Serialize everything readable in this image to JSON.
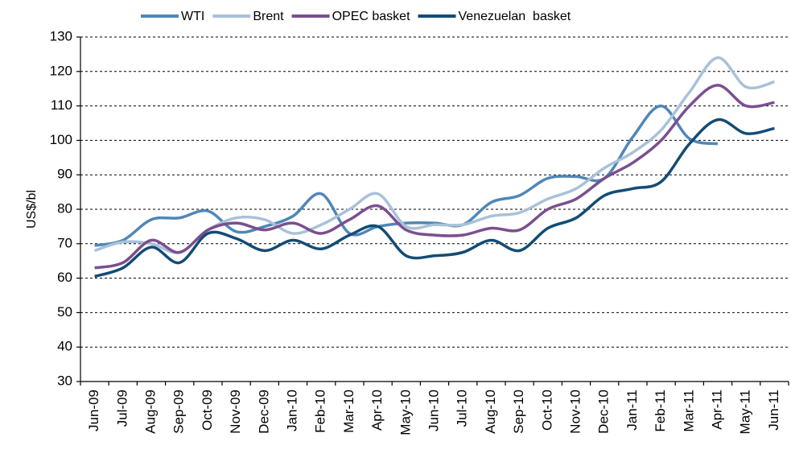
{
  "chart_data": {
    "type": "line",
    "y_label": "US$/bl",
    "categories": [
      "Jun-09",
      "Jul-09",
      "Aug-09",
      "Sep-09",
      "Oct-09",
      "Nov-09",
      "Dec-09",
      "Jan-10",
      "Feb-10",
      "Mar-10",
      "Apr-10",
      "May-10",
      "Jun-10",
      "Jul-10",
      "Aug-10",
      "Sep-10",
      "Oct-10",
      "Nov-10",
      "Dec-10",
      "Jan-11",
      "Feb-11",
      "Mar-11",
      "Apr-11",
      "May-11",
      "Jun-11"
    ],
    "series": [
      {
        "name": "WTI",
        "color": "#4f87b8",
        "values": [
          69.5,
          71,
          77,
          77.5,
          79.5,
          73.5,
          75,
          78,
          84.5,
          73,
          75,
          76,
          76,
          75.5,
          82,
          84,
          89,
          89.5,
          89,
          101,
          110,
          100.5,
          99,
          null,
          null
        ]
      },
      {
        "name": "Brent",
        "color": "#a9c1d9",
        "values": [
          68,
          70.5,
          70,
          67.5,
          74,
          77.5,
          77,
          73,
          75.5,
          80,
          84.5,
          75,
          75.5,
          75.5,
          78,
          79,
          83,
          86,
          92,
          96.5,
          103,
          114,
          124,
          115.5,
          117
        ]
      },
      {
        "name": "OPEC basket",
        "color": "#7a4f8f",
        "values": [
          63,
          64.5,
          71,
          67.5,
          74,
          76,
          74,
          76,
          73,
          77,
          81,
          74,
          72.5,
          72.5,
          74.5,
          74,
          80,
          83,
          89,
          93.5,
          100,
          110,
          116,
          110,
          111
        ]
      },
      {
        "name": "Venezuelan  basket",
        "color": "#134c74",
        "values": [
          60.5,
          63,
          69,
          64.5,
          73,
          71.5,
          68,
          71,
          68.5,
          72.5,
          75,
          66.5,
          66.5,
          67.5,
          71,
          68,
          74.5,
          77.5,
          84,
          86,
          88,
          99,
          106,
          102,
          103.5
        ]
      }
    ],
    "ylim": [
      30,
      130
    ],
    "yticks": [
      30,
      40,
      50,
      60,
      70,
      80,
      90,
      100,
      110,
      120,
      130
    ],
    "grid": true,
    "legend": "top"
  }
}
